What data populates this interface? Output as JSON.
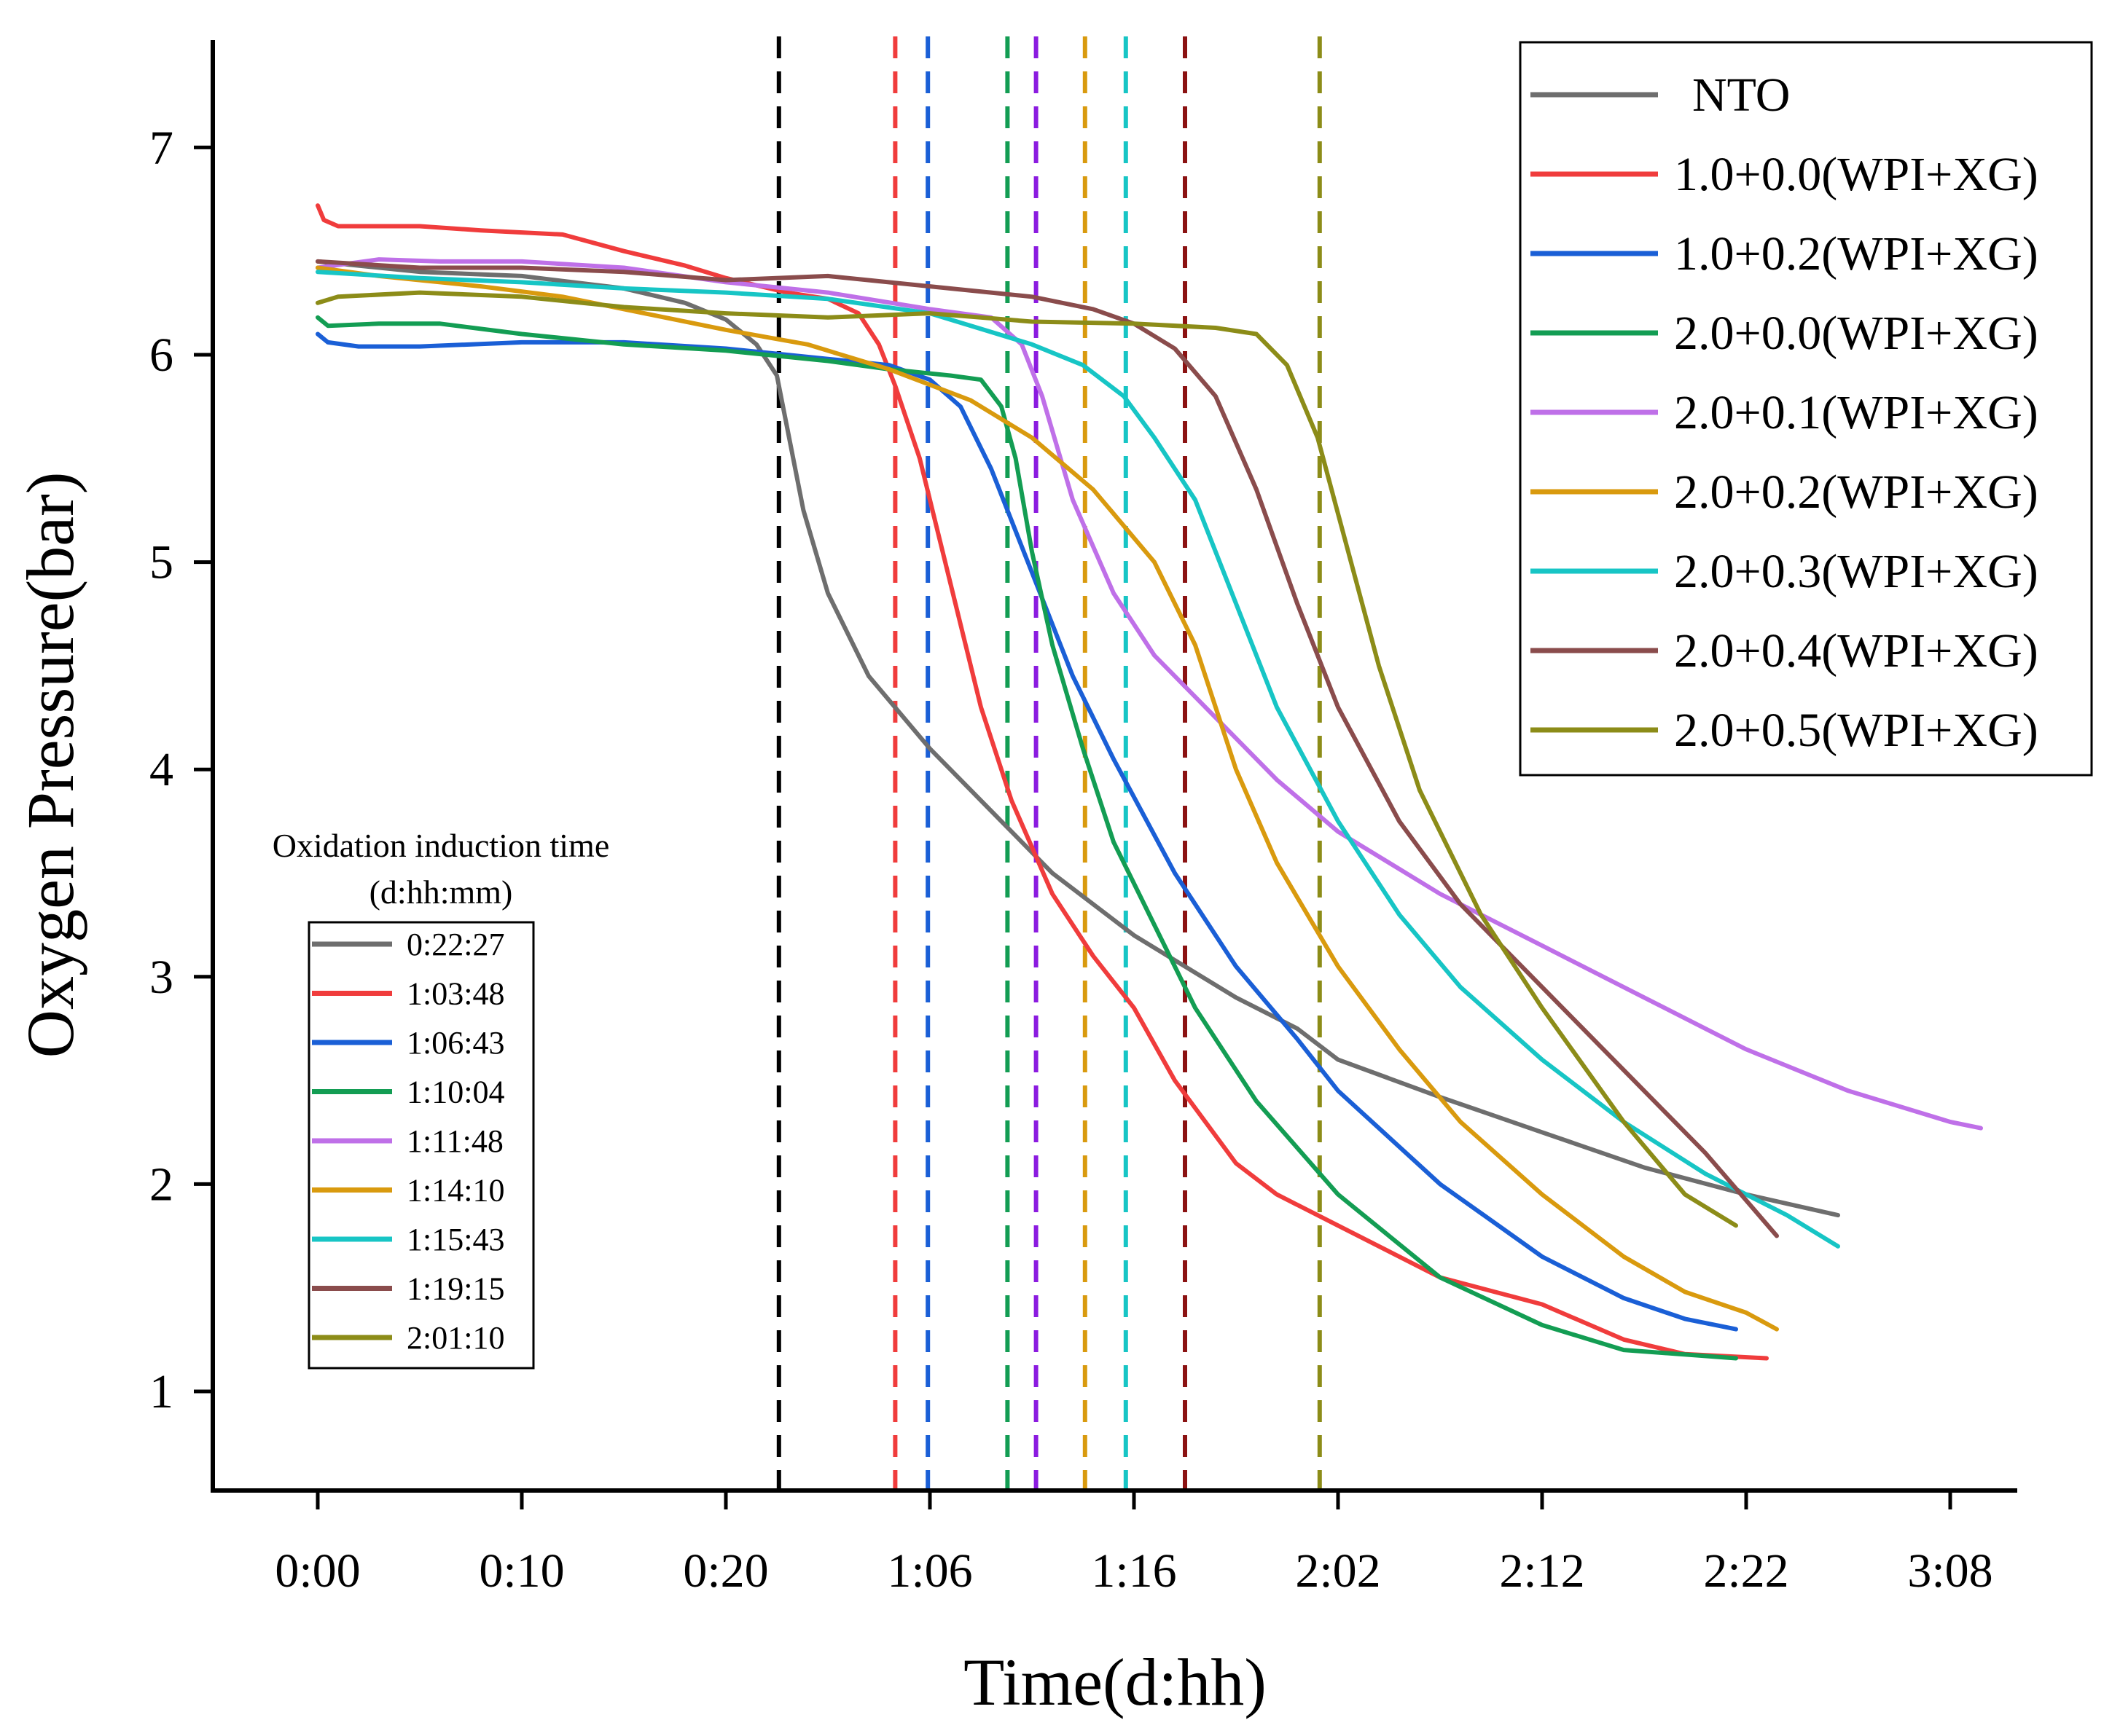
{
  "chart_data": {
    "type": "line",
    "xlabel": "Time(d:hh)",
    "ylabel": "Oxygen Pressure(bar)",
    "x_unit": "hours",
    "xlim": [
      -5,
      82.5
    ],
    "ylim": [
      0.5,
      7.5
    ],
    "x_ticks": [
      {
        "value": 0,
        "label": "0:00"
      },
      {
        "value": 10,
        "label": "0:10"
      },
      {
        "value": 20,
        "label": "0:20"
      },
      {
        "value": 30,
        "label": "1:06"
      },
      {
        "value": 40,
        "label": "1:16"
      },
      {
        "value": 50,
        "label": "2:02"
      },
      {
        "value": 60,
        "label": "2:12"
      },
      {
        "value": 70,
        "label": "2:22"
      },
      {
        "value": 80,
        "label": "3:08"
      }
    ],
    "y_ticks": [
      {
        "value": 1,
        "label": "1"
      },
      {
        "value": 2,
        "label": "2"
      },
      {
        "value": 3,
        "label": "3"
      },
      {
        "value": 4,
        "label": "4"
      },
      {
        "value": 5,
        "label": "5"
      },
      {
        "value": 6,
        "label": "6"
      },
      {
        "value": 7,
        "label": "7"
      }
    ],
    "legend_position": "top-right",
    "series": [
      {
        "name": "NTO",
        "color": "#6e6e6e",
        "points": [
          [
            0,
            6.45
          ],
          [
            5,
            6.4
          ],
          [
            10,
            6.38
          ],
          [
            15,
            6.32
          ],
          [
            18,
            6.25
          ],
          [
            20,
            6.17
          ],
          [
            21.5,
            6.05
          ],
          [
            22.5,
            5.9
          ],
          [
            23,
            5.65
          ],
          [
            23.8,
            5.25
          ],
          [
            25,
            4.85
          ],
          [
            27,
            4.45
          ],
          [
            30,
            4.1
          ],
          [
            33,
            3.8
          ],
          [
            36,
            3.5
          ],
          [
            40,
            3.2
          ],
          [
            45,
            2.9
          ],
          [
            48,
            2.75
          ],
          [
            50,
            2.6
          ],
          [
            55,
            2.42
          ],
          [
            60,
            2.25
          ],
          [
            65,
            2.08
          ],
          [
            70,
            1.95
          ],
          [
            74.5,
            1.85
          ]
        ]
      },
      {
        "name": "1.0+0.0(WPI+XG)",
        "color": "#f03c3c",
        "points": [
          [
            0,
            6.72
          ],
          [
            0.3,
            6.65
          ],
          [
            1,
            6.62
          ],
          [
            5,
            6.62
          ],
          [
            8,
            6.6
          ],
          [
            12,
            6.58
          ],
          [
            15,
            6.5
          ],
          [
            18,
            6.43
          ],
          [
            20,
            6.37
          ],
          [
            23,
            6.3
          ],
          [
            25,
            6.27
          ],
          [
            26.5,
            6.2
          ],
          [
            27.5,
            6.05
          ],
          [
            28.3,
            5.85
          ],
          [
            29.5,
            5.5
          ],
          [
            31,
            4.9
          ],
          [
            32.5,
            4.3
          ],
          [
            34,
            3.85
          ],
          [
            36,
            3.4
          ],
          [
            38,
            3.1
          ],
          [
            40,
            2.85
          ],
          [
            42,
            2.5
          ],
          [
            45,
            2.1
          ],
          [
            47,
            1.95
          ],
          [
            50,
            1.8
          ],
          [
            55,
            1.55
          ],
          [
            60,
            1.42
          ],
          [
            64,
            1.25
          ],
          [
            67,
            1.18
          ],
          [
            71,
            1.16
          ]
        ]
      },
      {
        "name": "1.0+0.2(WPI+XG)",
        "color": "#1a5fd6",
        "points": [
          [
            0,
            6.1
          ],
          [
            0.5,
            6.06
          ],
          [
            2,
            6.04
          ],
          [
            5,
            6.04
          ],
          [
            10,
            6.06
          ],
          [
            15,
            6.06
          ],
          [
            20,
            6.03
          ],
          [
            25,
            5.98
          ],
          [
            28,
            5.95
          ],
          [
            30,
            5.88
          ],
          [
            31.5,
            5.75
          ],
          [
            33,
            5.45
          ],
          [
            35,
            4.95
          ],
          [
            37,
            4.45
          ],
          [
            39,
            4.05
          ],
          [
            42,
            3.5
          ],
          [
            45,
            3.05
          ],
          [
            48,
            2.7
          ],
          [
            50,
            2.45
          ],
          [
            55,
            2.0
          ],
          [
            60,
            1.65
          ],
          [
            64,
            1.45
          ],
          [
            67,
            1.35
          ],
          [
            69.5,
            1.3
          ]
        ]
      },
      {
        "name": "2.0+0.0(WPI+XG)",
        "color": "#139d53",
        "points": [
          [
            0,
            6.18
          ],
          [
            0.5,
            6.14
          ],
          [
            3,
            6.15
          ],
          [
            6,
            6.15
          ],
          [
            10,
            6.1
          ],
          [
            15,
            6.05
          ],
          [
            20,
            6.02
          ],
          [
            25,
            5.97
          ],
          [
            28,
            5.93
          ],
          [
            31,
            5.9
          ],
          [
            32.5,
            5.88
          ],
          [
            33.5,
            5.75
          ],
          [
            34.2,
            5.5
          ],
          [
            35,
            5.05
          ],
          [
            36,
            4.6
          ],
          [
            37.5,
            4.1
          ],
          [
            39,
            3.65
          ],
          [
            41,
            3.25
          ],
          [
            43,
            2.85
          ],
          [
            46,
            2.4
          ],
          [
            50,
            1.95
          ],
          [
            55,
            1.55
          ],
          [
            60,
            1.32
          ],
          [
            64,
            1.2
          ],
          [
            69.5,
            1.16
          ]
        ]
      },
      {
        "name": "2.0+0.1(WPI+XG)",
        "color": "#bf70e8",
        "points": [
          [
            0,
            6.42
          ],
          [
            3,
            6.46
          ],
          [
            6,
            6.45
          ],
          [
            10,
            6.45
          ],
          [
            15,
            6.42
          ],
          [
            20,
            6.35
          ],
          [
            25,
            6.3
          ],
          [
            30,
            6.22
          ],
          [
            33,
            6.18
          ],
          [
            34.5,
            6.05
          ],
          [
            35.5,
            5.8
          ],
          [
            37,
            5.3
          ],
          [
            39,
            4.85
          ],
          [
            41,
            4.55
          ],
          [
            44,
            4.25
          ],
          [
            47,
            3.95
          ],
          [
            50,
            3.7
          ],
          [
            55,
            3.4
          ],
          [
            60,
            3.15
          ],
          [
            65,
            2.9
          ],
          [
            70,
            2.65
          ],
          [
            75,
            2.45
          ],
          [
            80,
            2.3
          ],
          [
            81.5,
            2.27
          ]
        ]
      },
      {
        "name": "2.0+0.2(WPI+XG)",
        "color": "#d99a0e",
        "points": [
          [
            0,
            6.42
          ],
          [
            3,
            6.38
          ],
          [
            8,
            6.33
          ],
          [
            12,
            6.28
          ],
          [
            16,
            6.2
          ],
          [
            20,
            6.12
          ],
          [
            24,
            6.05
          ],
          [
            28,
            5.93
          ],
          [
            32,
            5.78
          ],
          [
            35,
            5.6
          ],
          [
            38,
            5.35
          ],
          [
            41,
            5.0
          ],
          [
            43,
            4.6
          ],
          [
            45,
            4.0
          ],
          [
            47,
            3.55
          ],
          [
            50,
            3.05
          ],
          [
            53,
            2.65
          ],
          [
            56,
            2.3
          ],
          [
            60,
            1.95
          ],
          [
            64,
            1.65
          ],
          [
            67,
            1.48
          ],
          [
            70,
            1.38
          ],
          [
            71.5,
            1.3
          ]
        ]
      },
      {
        "name": "2.0+0.3(WPI+XG)",
        "color": "#17c5c5",
        "points": [
          [
            0,
            6.4
          ],
          [
            5,
            6.37
          ],
          [
            10,
            6.35
          ],
          [
            15,
            6.32
          ],
          [
            20,
            6.3
          ],
          [
            25,
            6.27
          ],
          [
            30,
            6.2
          ],
          [
            35,
            6.05
          ],
          [
            37.5,
            5.95
          ],
          [
            39.5,
            5.8
          ],
          [
            41,
            5.6
          ],
          [
            43,
            5.3
          ],
          [
            45,
            4.8
          ],
          [
            47,
            4.3
          ],
          [
            50,
            3.75
          ],
          [
            53,
            3.3
          ],
          [
            56,
            2.95
          ],
          [
            60,
            2.6
          ],
          [
            64,
            2.3
          ],
          [
            68,
            2.05
          ],
          [
            72,
            1.85
          ],
          [
            74.5,
            1.7
          ]
        ]
      },
      {
        "name": "2.0+0.4(WPI+XG)",
        "color": "#8a4c4c",
        "points": [
          [
            0,
            6.45
          ],
          [
            5,
            6.42
          ],
          [
            10,
            6.42
          ],
          [
            15,
            6.4
          ],
          [
            20,
            6.36
          ],
          [
            25,
            6.38
          ],
          [
            30,
            6.33
          ],
          [
            35,
            6.28
          ],
          [
            38,
            6.22
          ],
          [
            40,
            6.15
          ],
          [
            42,
            6.03
          ],
          [
            44,
            5.8
          ],
          [
            46,
            5.35
          ],
          [
            48,
            4.8
          ],
          [
            50,
            4.3
          ],
          [
            53,
            3.75
          ],
          [
            56,
            3.35
          ],
          [
            60,
            2.95
          ],
          [
            64,
            2.55
          ],
          [
            68,
            2.15
          ],
          [
            71.5,
            1.75
          ]
        ]
      },
      {
        "name": "2.0+0.5(WPI+XG)",
        "color": "#8c8c18",
        "points": [
          [
            0,
            6.25
          ],
          [
            1,
            6.28
          ],
          [
            5,
            6.3
          ],
          [
            10,
            6.28
          ],
          [
            15,
            6.23
          ],
          [
            20,
            6.2
          ],
          [
            25,
            6.18
          ],
          [
            30,
            6.2
          ],
          [
            35,
            6.16
          ],
          [
            40,
            6.15
          ],
          [
            44,
            6.13
          ],
          [
            46,
            6.1
          ],
          [
            47.5,
            5.95
          ],
          [
            49,
            5.6
          ],
          [
            50.5,
            5.05
          ],
          [
            52,
            4.5
          ],
          [
            54,
            3.9
          ],
          [
            57,
            3.3
          ],
          [
            60,
            2.85
          ],
          [
            64,
            2.3
          ],
          [
            67,
            1.95
          ],
          [
            69.5,
            1.8
          ]
        ]
      }
    ],
    "vertical_lines": [
      {
        "x": 22.6,
        "color": "#000000"
      },
      {
        "x": 28.3,
        "color": "#f03c3c"
      },
      {
        "x": 29.9,
        "color": "#1a5fd6"
      },
      {
        "x": 33.8,
        "color": "#139d53"
      },
      {
        "x": 35.2,
        "color": "#8b1be0"
      },
      {
        "x": 37.6,
        "color": "#d99a0e"
      },
      {
        "x": 39.6,
        "color": "#17c5c5"
      },
      {
        "x": 42.5,
        "color": "#8b1212"
      },
      {
        "x": 49.1,
        "color": "#8c8c18"
      }
    ],
    "inset": {
      "title_line1": "Oxidation induction time",
      "title_line2": "(d:hh:mm)",
      "entries": [
        {
          "label": "0:22:27",
          "color": "#6e6e6e"
        },
        {
          "label": "1:03:48",
          "color": "#f03c3c"
        },
        {
          "label": "1:06:43",
          "color": "#1a5fd6"
        },
        {
          "label": "1:10:04",
          "color": "#139d53"
        },
        {
          "label": "1:11:48",
          "color": "#bf70e8"
        },
        {
          "label": "1:14:10",
          "color": "#d99a0e"
        },
        {
          "label": "1:15:43",
          "color": "#17c5c5"
        },
        {
          "label": "1:19:15",
          "color": "#8a4c4c"
        },
        {
          "label": "2:01:10",
          "color": "#8c8c18"
        }
      ]
    }
  }
}
